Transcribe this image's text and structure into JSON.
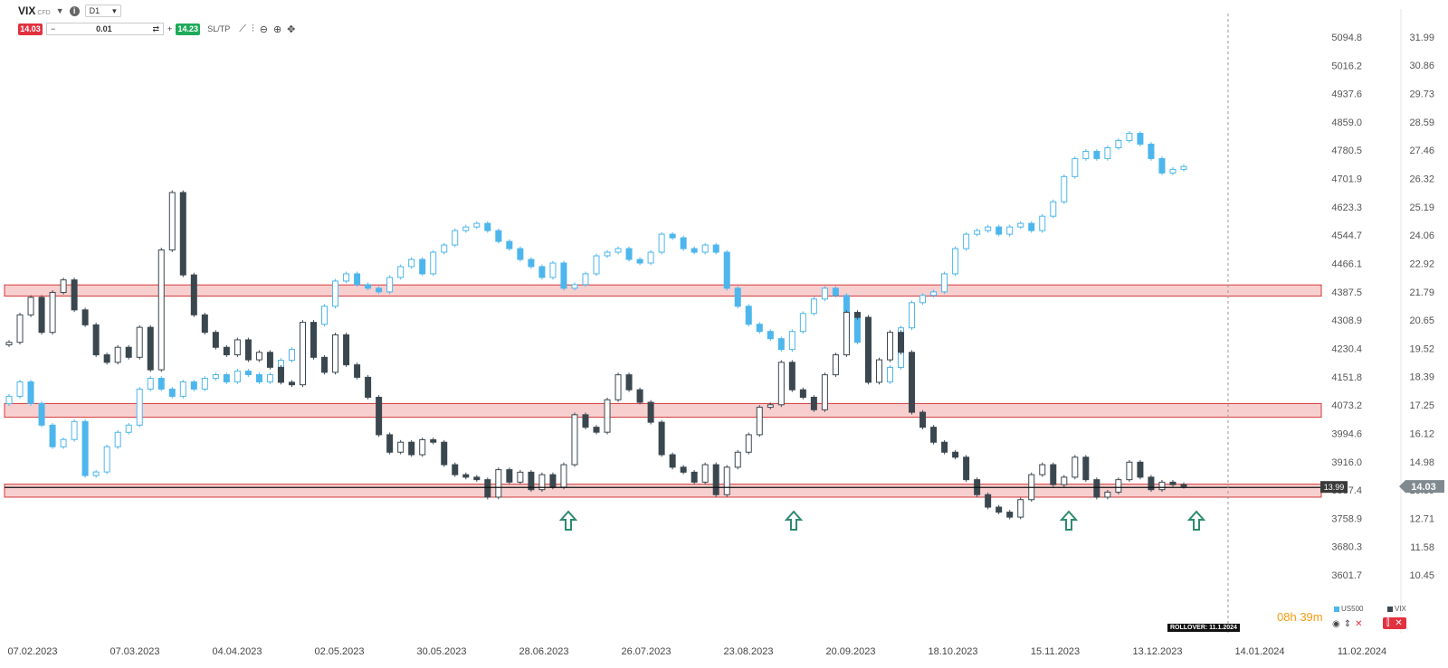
{
  "header": {
    "symbol": "VIX",
    "symbol_sub": "CFD",
    "info_glyph": "i",
    "timeframe": "D1"
  },
  "trade": {
    "sell_price": "14.03",
    "minus": "−",
    "quantity": "0.01",
    "plus": "+",
    "buy_price": "14.23",
    "sltp": "SL/TP"
  },
  "colors": {
    "us500": "#4db6ec",
    "vix": "#3a474f",
    "zone_fill": "#f8cfcf",
    "zone_stroke": "#d23b3b",
    "current_price": "#7f8a90"
  },
  "left_axis_labels": [
    "5094.8",
    "5016.2",
    "4937.6",
    "4859.0",
    "4780.5",
    "4701.9",
    "4623.3",
    "4544.7",
    "4466.1",
    "4387.5",
    "4308.9",
    "4230.4",
    "4151.8",
    "4073.2",
    "3994.6",
    "3916.0",
    "3837.4",
    "3758.9",
    "3680.3",
    "3601.7"
  ],
  "right_axis_labels": [
    "31.99",
    "30.86",
    "29.73",
    "28.59",
    "27.46",
    "26.32",
    "25.19",
    "24.06",
    "22.92",
    "21.79",
    "20.65",
    "19.52",
    "18.39",
    "17.25",
    "16.12",
    "14.98",
    "13.85",
    "12.71",
    "11.58",
    "10.45"
  ],
  "x_axis_labels": [
    "07.02.2023",
    "07.03.2023",
    "04.04.2023",
    "02.05.2023",
    "30.05.2023",
    "28.06.2023",
    "26.07.2023",
    "23.08.2023",
    "20.09.2023",
    "18.10.2023",
    "15.11.2023",
    "13.12.2023",
    "14.01.2024",
    "11.02.2024"
  ],
  "price_tags": {
    "vix_current": "14.03",
    "horizontal_line": "13.99"
  },
  "support_resistance_zones": [
    {
      "from": 21.65,
      "to": 22.1
    },
    {
      "from": 16.8,
      "to": 17.35
    },
    {
      "from": 13.6,
      "to": 14.12
    }
  ],
  "arrows": {
    "count": 4,
    "dates": [
      "~04.07.2023",
      "~06.09.2023",
      "~21.11.2023",
      "~20.12.2023"
    ]
  },
  "footer": {
    "rollover": "ROLLOVER: 11.1.2024",
    "timer_h": "08h",
    "timer_m": "39m",
    "legend_us500": "US500",
    "legend_vix": "VIX"
  },
  "chart_data": {
    "type": "candlestick",
    "series": [
      {
        "name": "US500",
        "axis": "left",
        "close": [
          4100,
          4140,
          4080,
          4020,
          3960,
          3980,
          4030,
          3880,
          3890,
          3960,
          4000,
          4020,
          4120,
          4150,
          4120,
          4100,
          4140,
          4120,
          4150,
          4160,
          4140,
          4170,
          4160,
          4140,
          4160,
          4200,
          4230,
          4260,
          4300,
          4350,
          4420,
          4440,
          4410,
          4400,
          4390,
          4430,
          4460,
          4480,
          4440,
          4500,
          4520,
          4560,
          4570,
          4580,
          4560,
          4530,
          4510,
          4480,
          4460,
          4430,
          4470,
          4400,
          4410,
          4440,
          4490,
          4500,
          4510,
          4480,
          4470,
          4500,
          4550,
          4540,
          4510,
          4500,
          4520,
          4500,
          4400,
          4350,
          4300,
          4280,
          4260,
          4230,
          4280,
          4330,
          4370,
          4400,
          4380,
          4330,
          4250,
          4190,
          4140,
          4180,
          4290,
          4360,
          4380,
          4390,
          4440,
          4510,
          4550,
          4560,
          4570,
          4550,
          4570,
          4580,
          4560,
          4600,
          4640,
          4710,
          4760,
          4780,
          4760,
          4790,
          4810,
          4830,
          4800,
          4760,
          4720,
          4730,
          4738
        ]
      },
      {
        "name": "VIX",
        "axis": "right",
        "close": [
          19.8,
          20.9,
          21.6,
          20.2,
          21.8,
          22.3,
          21.1,
          20.5,
          19.3,
          19.0,
          19.6,
          19.2,
          20.4,
          18.7,
          23.5,
          25.8,
          22.5,
          20.9,
          20.2,
          19.6,
          19.3,
          19.9,
          19.1,
          19.4,
          18.8,
          18.2,
          18.1,
          20.6,
          19.2,
          18.6,
          20.1,
          18.9,
          18.4,
          17.6,
          16.1,
          15.4,
          15.8,
          15.3,
          15.9,
          15.8,
          14.9,
          14.5,
          14.4,
          14.3,
          13.6,
          14.7,
          14.2,
          14.6,
          13.9,
          14.5,
          14.0,
          14.9,
          16.9,
          16.4,
          16.2,
          17.5,
          18.5,
          17.9,
          17.4,
          16.6,
          15.3,
          14.8,
          14.6,
          14.2,
          14.9,
          13.7,
          14.8,
          15.4,
          16.1,
          17.2,
          17.3,
          19.0,
          17.9,
          17.6,
          17.1,
          18.5,
          19.3,
          21.0,
          20.8,
          18.2,
          19.1,
          20.2,
          19.4,
          17.0,
          16.4,
          15.8,
          15.4,
          15.2,
          14.3,
          13.7,
          13.2,
          13.0,
          12.8,
          13.5,
          14.5,
          14.9,
          14.1,
          14.4,
          15.2,
          14.3,
          13.6,
          13.8,
          14.3,
          15.0,
          14.4,
          13.9,
          14.2,
          14.1,
          14.03
        ]
      }
    ],
    "x_range": [
      "07.02.2023",
      "11.02.2024"
    ],
    "left_range": [
      3601.7,
      5094.8
    ],
    "right_range": [
      10.45,
      31.99
    ],
    "grid": false,
    "legend_placement": "bottom-right"
  }
}
